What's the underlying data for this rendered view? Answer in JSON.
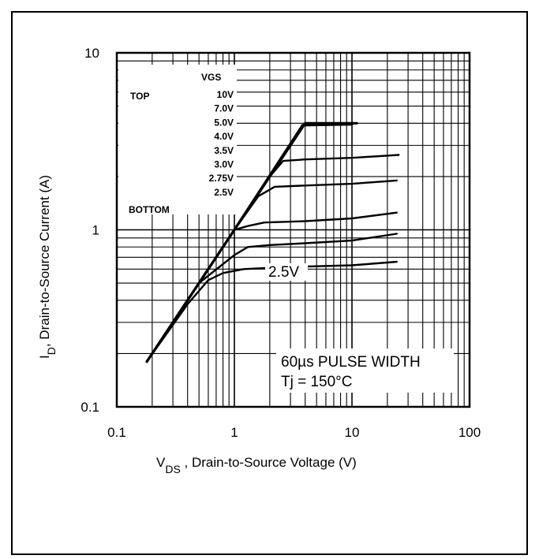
{
  "chart_data": {
    "type": "line",
    "xscale": "log",
    "yscale": "log",
    "xlim": [
      0.1,
      100
    ],
    "ylim": [
      0.1,
      10
    ],
    "x_ticks": [
      "0.1",
      "1",
      "10",
      "100"
    ],
    "y_ticks": [
      "10",
      "1",
      "0.1"
    ],
    "xlabel": {
      "main": "V",
      "sub": "DS",
      "rest": " , Drain-to-Source Voltage (V)"
    },
    "ylabel": {
      "main": "I",
      "sub": "D",
      "rest": ", Drain-to-Source Current  (A)"
    },
    "grid": true,
    "legend": {
      "header": "VGS",
      "top_label": "TOP",
      "bottom_label": "BOTTOM",
      "entries": [
        "10V",
        "7.0V",
        "5.0V",
        "4.0V",
        "3.5V",
        "3.0V",
        "2.75V",
        "2.5V"
      ]
    },
    "annotations": {
      "curve_label": "2.5V",
      "note_line1": "60µs PULSE  WIDTH",
      "note_line2": "Tj = 150°C"
    },
    "series": [
      {
        "x": [
          0.18,
          1.0,
          4.0,
          11
        ],
        "y": [
          0.18,
          1.0,
          4.0,
          4.0
        ]
      },
      {
        "x": [
          0.18,
          1.0,
          3.8,
          10
        ],
        "y": [
          0.18,
          1.0,
          3.9,
          3.95
        ]
      },
      {
        "x": [
          0.18,
          1.0,
          2.0,
          2.6,
          4,
          10,
          25
        ],
        "y": [
          0.18,
          1.0,
          2.0,
          2.45,
          2.5,
          2.55,
          2.65
        ]
      },
      {
        "x": [
          0.18,
          1.0,
          1.6,
          2.2,
          4,
          10,
          24
        ],
        "y": [
          0.18,
          1.0,
          1.55,
          1.75,
          1.78,
          1.82,
          1.9
        ]
      },
      {
        "x": [
          0.18,
          1.0,
          1.3,
          1.8,
          4,
          10,
          24
        ],
        "y": [
          0.18,
          1.0,
          1.05,
          1.1,
          1.12,
          1.16,
          1.25
        ]
      },
      {
        "x": [
          0.18,
          0.5,
          1.0,
          1.3,
          2,
          4,
          10,
          24
        ],
        "y": [
          0.18,
          0.5,
          0.72,
          0.8,
          0.82,
          0.84,
          0.87,
          0.95
        ]
      },
      {
        "x": [
          0.18,
          0.4,
          0.6,
          0.8,
          1.2,
          2,
          4,
          10,
          24
        ],
        "y": [
          0.18,
          0.38,
          0.52,
          0.57,
          0.6,
          0.61,
          0.62,
          0.63,
          0.66
        ]
      }
    ]
  }
}
